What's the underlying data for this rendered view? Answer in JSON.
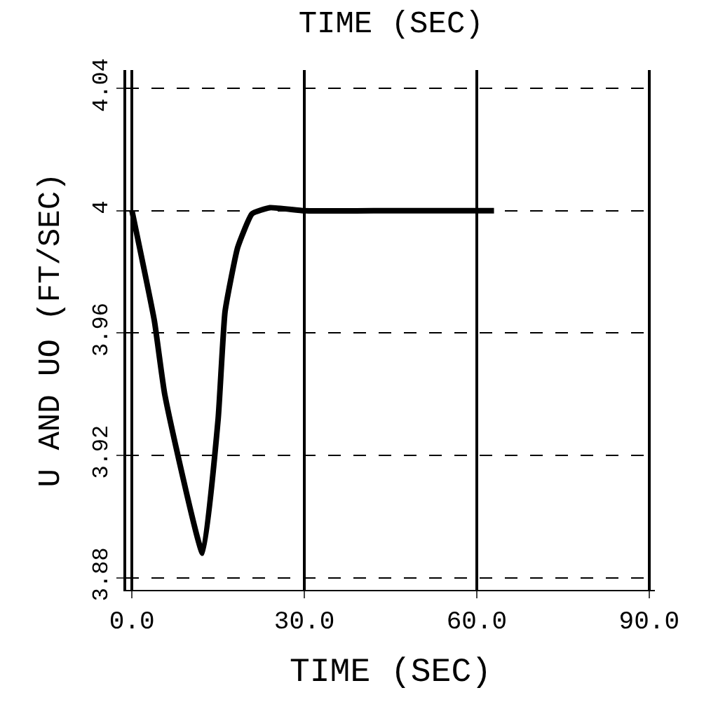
{
  "chart_data": {
    "type": "line",
    "title": "TIME (SEC)",
    "xlabel": "TIME (SEC)",
    "ylabel": "U AND UO (FT/SEC)",
    "x": [
      0,
      3.9,
      5.7,
      12.3,
      15,
      16.2,
      18.4,
      20.9,
      24,
      30,
      45,
      63
    ],
    "series": [
      {
        "color": "#000000",
        "values": [
          4.0,
          3.964,
          3.94,
          3.888,
          3.932,
          3.967,
          3.988,
          3.999,
          4.001,
          4.0,
          4.0,
          4.0
        ]
      }
    ],
    "xlim": [
      -1,
      91
    ],
    "ylim": [
      3.876,
      4.046
    ],
    "xticks": [
      {
        "value": 0,
        "label": "0.0"
      },
      {
        "value": 30,
        "label": "30.0"
      },
      {
        "value": 60,
        "label": "60.0"
      },
      {
        "value": 90,
        "label": "90.0"
      }
    ],
    "yticks": [
      3.88,
      3.92,
      3.96,
      4,
      4.04
    ],
    "grid": true,
    "marker": "none",
    "line_style": "solid"
  }
}
